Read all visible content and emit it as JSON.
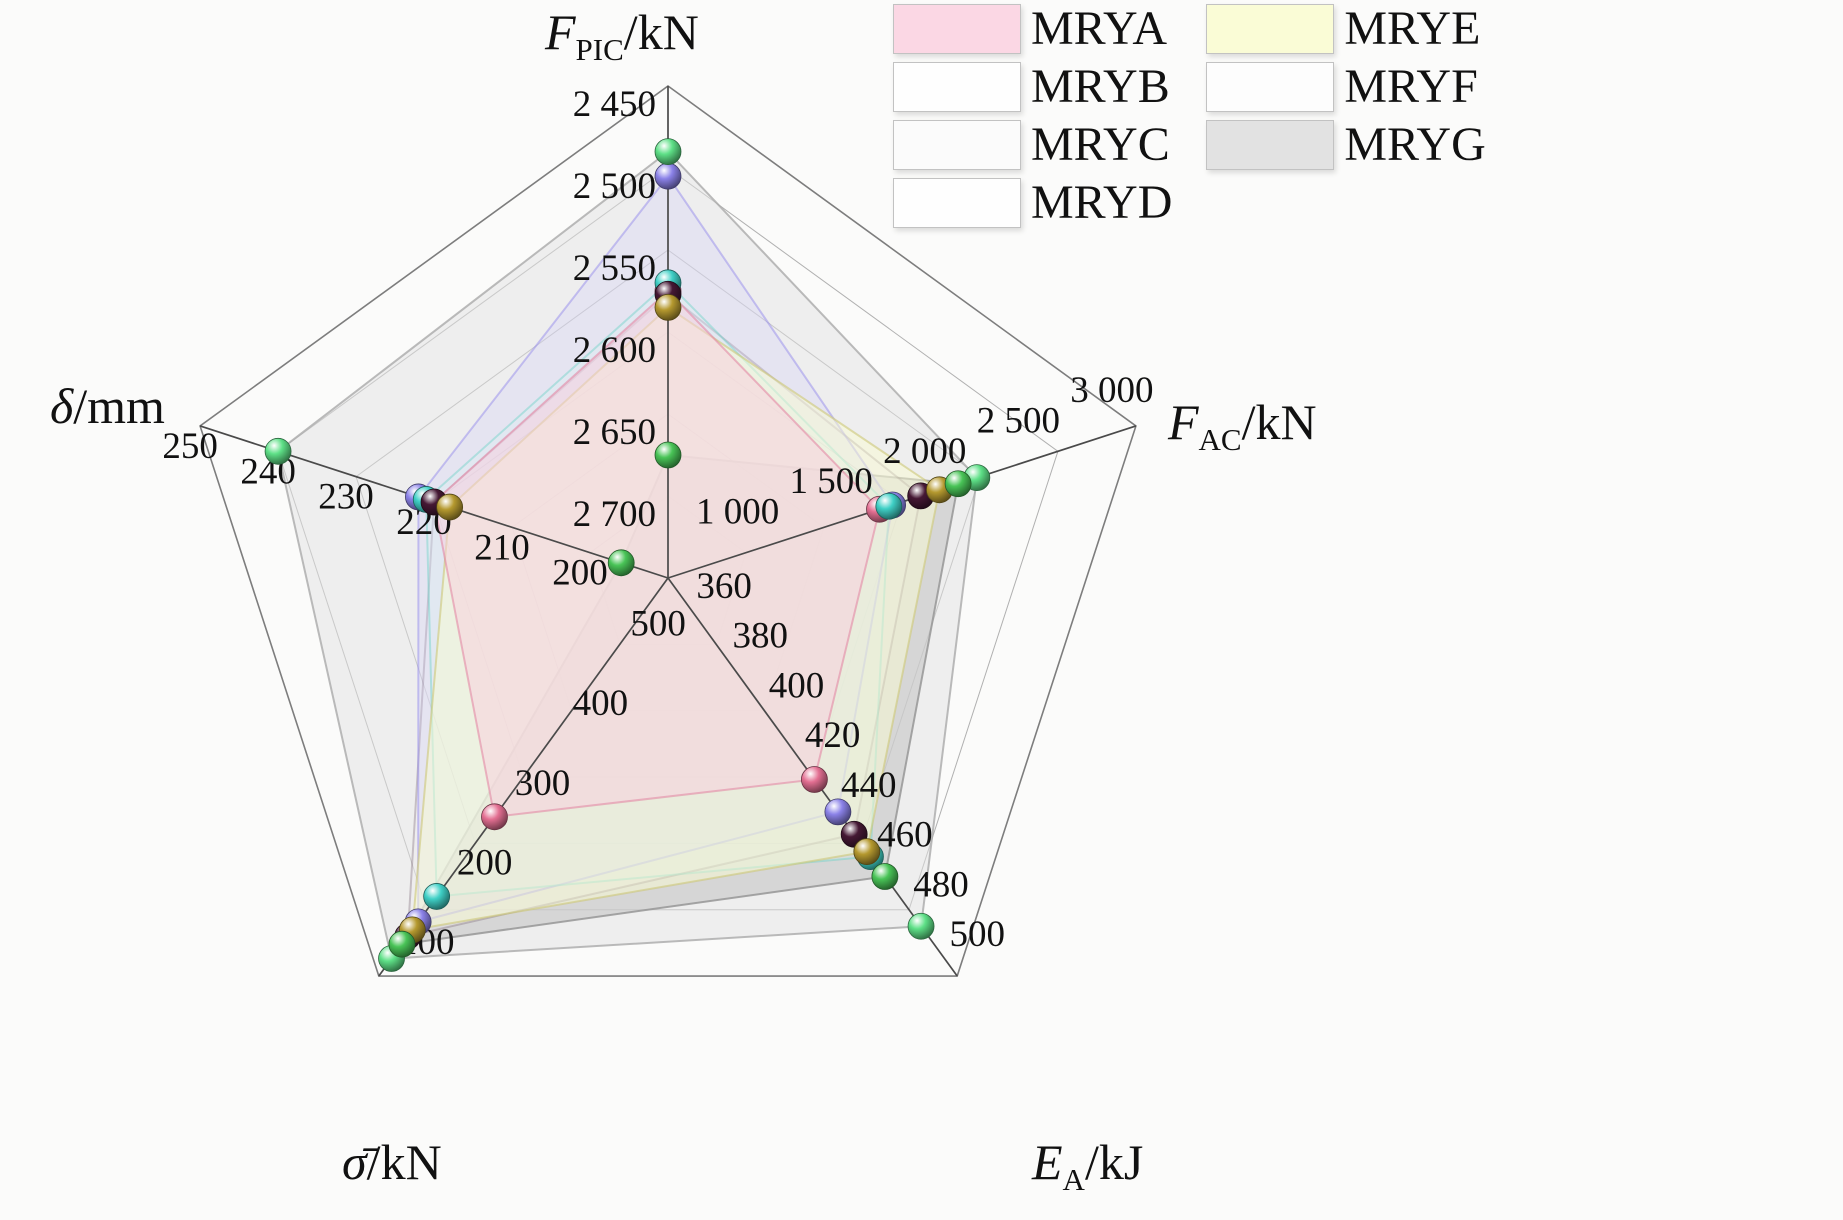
{
  "figure": {
    "background": "#fbfbfa",
    "grid_color": "#b0b0b0",
    "axis_line_color": "#4a4a4a"
  },
  "legend": {
    "items": [
      {
        "label": "MRYA",
        "swatch": "#fbd7e4"
      },
      {
        "label": "MRYB",
        "swatch": "#fefefe"
      },
      {
        "label": "MRYC",
        "swatch": "#fbfbfb"
      },
      {
        "label": "MRYD",
        "swatch": "#fefefe"
      },
      {
        "label": "MRYE",
        "swatch": "#fafcd6"
      },
      {
        "label": "MRYF",
        "swatch": "#fdfdfd"
      },
      {
        "label": "MRYG",
        "swatch": "#e2e2e2"
      }
    ]
  },
  "chart_data": {
    "type": "radar",
    "title": "",
    "grid": true,
    "legend_position": "top-right",
    "axes": [
      {
        "id": "F_PIC",
        "title": {
          "main": "F",
          "sub": "PIC",
          "unit": "/kN"
        },
        "center_value": 2750,
        "outer_value": 2450,
        "inverted": true,
        "ticks": [
          {
            "value": 2450,
            "label": "2 450"
          },
          {
            "value": 2500,
            "label": "2 500"
          },
          {
            "value": 2550,
            "label": "2 550"
          },
          {
            "value": 2600,
            "label": "2 600"
          },
          {
            "value": 2650,
            "label": "2 650"
          },
          {
            "value": 2700,
            "label": "2 700"
          }
        ]
      },
      {
        "id": "F_AC",
        "title": {
          "main": "F",
          "sub": "AC",
          "unit": "/kN"
        },
        "center_value": 500,
        "outer_value": 3000,
        "inverted": false,
        "ticks": [
          {
            "value": 3000,
            "label": "3 000"
          },
          {
            "value": 2500,
            "label": "2 500"
          },
          {
            "value": 2000,
            "label": "2 000"
          },
          {
            "value": 1500,
            "label": "1 500"
          },
          {
            "value": 1000,
            "label": "1 000"
          }
        ]
      },
      {
        "id": "E_A",
        "title": {
          "main": "E",
          "sub": "A",
          "unit": "/kJ"
        },
        "center_value": 340,
        "outer_value": 500,
        "inverted": false,
        "ticks": [
          {
            "value": 360,
            "label": "360"
          },
          {
            "value": 380,
            "label": "380"
          },
          {
            "value": 400,
            "label": "400"
          },
          {
            "value": 420,
            "label": "420"
          },
          {
            "value": 440,
            "label": "440"
          },
          {
            "value": 460,
            "label": "460"
          },
          {
            "value": 480,
            "label": "480"
          },
          {
            "value": 500,
            "label": "500"
          }
        ]
      },
      {
        "id": "SIG",
        "title": {
          "main": "σ̄",
          "sub": "",
          "unit": "/kN"
        },
        "center_value": 600,
        "outer_value": 100,
        "inverted": true,
        "ticks": [
          {
            "value": 500,
            "label": "500"
          },
          {
            "value": 400,
            "label": "400"
          },
          {
            "value": 300,
            "label": "300"
          },
          {
            "value": 200,
            "label": "200"
          },
          {
            "value": 100,
            "label": "100"
          }
        ]
      },
      {
        "id": "DEL",
        "title": {
          "main": "δ",
          "sub": "",
          "unit": "/mm"
        },
        "center_value": 190,
        "outer_value": 250,
        "inverted": false,
        "ticks": [
          {
            "value": 200,
            "label": "200"
          },
          {
            "value": 210,
            "label": "210"
          },
          {
            "value": 220,
            "label": "220"
          },
          {
            "value": 230,
            "label": "230"
          },
          {
            "value": 240,
            "label": "240"
          },
          {
            "value": 250,
            "label": "250"
          }
        ]
      }
    ],
    "series": [
      {
        "name": "MRYA",
        "color": "#e36f92",
        "fill": "rgba(250,205,222,0.50)",
        "stroke": "rgba(225,130,160,0.55)",
        "values": [
          2575,
          1630,
          421,
          300,
          220
        ]
      },
      {
        "name": "MRYB",
        "color": "#8b82e8",
        "fill": "rgba(210,205,250,0.28)",
        "stroke": "rgba(150,140,235,0.50)",
        "values": [
          2505,
          1700,
          434,
          168,
          222
        ]
      },
      {
        "name": "MRYC",
        "color": "#3fd0c6",
        "fill": "rgba(215,245,242,0.22)",
        "stroke": "rgba(110,210,200,0.45)",
        "values": [
          2570,
          1680,
          452,
          200,
          221
        ]
      },
      {
        "name": "MRYD",
        "color": "#451834",
        "fill": "rgba(240,238,240,0.28)",
        "stroke": "rgba(120,100,115,0.35)",
        "values": [
          2577,
          1850,
          443,
          150,
          220
        ]
      },
      {
        "name": "MRYE",
        "color": "#b5992f",
        "fill": "rgba(250,252,210,0.50)",
        "stroke": "rgba(205,200,120,0.60)",
        "values": [
          2585,
          1950,
          450,
          158,
          218
        ]
      },
      {
        "name": "MRYF",
        "color": "#5ee087",
        "fill": "rgba(225,225,225,0.50)",
        "stroke": "rgba(170,170,170,0.80)",
        "values": [
          2490,
          2150,
          480,
          122,
          240
        ]
      },
      {
        "name": "MRYG",
        "color": "#49c457",
        "fill": "rgba(198,198,198,0.60)",
        "stroke": "rgba(150,150,150,0.85)",
        "values": [
          2675,
          2050,
          460,
          140,
          196
        ]
      }
    ]
  }
}
